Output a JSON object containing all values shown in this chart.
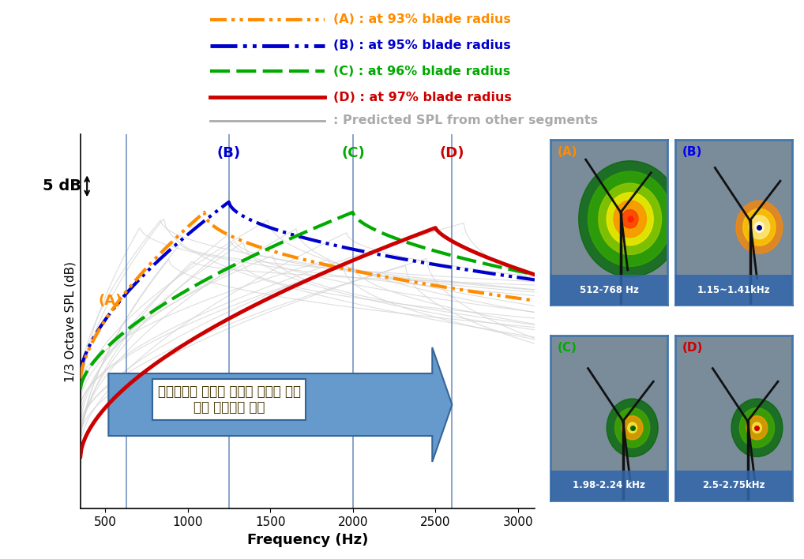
{
  "xlabel": "Frequency (Hz)",
  "ylabel": "1/3 Octave SPL (dB)",
  "xlim": [
    350,
    3100
  ],
  "vlines": [
    630,
    1250,
    2000,
    2600
  ],
  "series_A_color": "#FF8C00",
  "series_B_color": "#0000CC",
  "series_C_color": "#00AA00",
  "series_D_color": "#CC0000",
  "background_color": "#ffffff",
  "legend_A_label": "(A) : at 93% blade radius",
  "legend_B_label": "(B) : at 95% blade radius",
  "legend_C_label": "(C) : at 96% blade radius",
  "legend_D_label": "(D) : at 97% blade radius",
  "legend_other_label": ": Predicted SPL from other segments",
  "annotation_korean": "스펙트럼의 피크가 주파수 상승에 따라\n반경 방향으로 이동",
  "img_labels": [
    "(A)",
    "(B)",
    "(C)",
    "(D)"
  ],
  "img_label_colors": [
    "#FF8C00",
    "#0000EE",
    "#00AA00",
    "#CC0000"
  ],
  "img_freq_labels": [
    "512-768 Hz",
    "1.15~1.41kHz",
    "1.98-2.24 kHz",
    "2.5-2.75kHz"
  ]
}
